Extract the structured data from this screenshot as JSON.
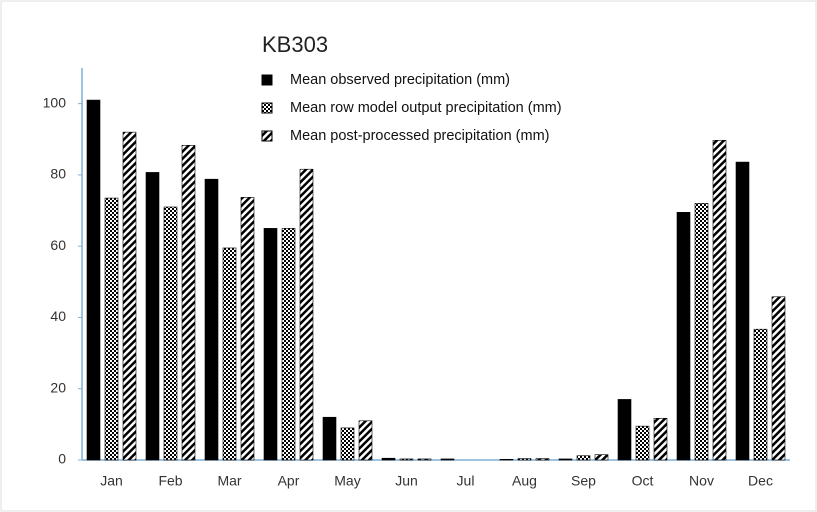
{
  "chart_data": {
    "type": "bar",
    "title": "KB303",
    "categories": [
      "Jan",
      "Feb",
      "Mar",
      "Apr",
      "May",
      "Jun",
      "Jul",
      "Aug",
      "Sep",
      "Oct",
      "Nov",
      "Dec"
    ],
    "series": [
      {
        "name": "Mean observed precipitation (mm)",
        "color": "#000000",
        "pattern": "solid",
        "values": [
          101,
          80.7,
          78.8,
          65,
          12,
          0.5,
          0.3,
          0.2,
          0.3,
          17,
          69.5,
          83.6
        ]
      },
      {
        "name": "Mean row model output precipitation (mm)",
        "color": "#000000",
        "pattern": "checker",
        "values": [
          73.5,
          71,
          59.5,
          65,
          9,
          0.3,
          0,
          0.4,
          1.2,
          9.5,
          72,
          36.7
        ]
      },
      {
        "name": "Mean post-processed precipitation (mm)",
        "color": "#000000",
        "pattern": "hatch",
        "values": [
          92,
          88.3,
          73.7,
          81.6,
          11,
          0.3,
          0,
          0.4,
          1.5,
          11.7,
          89.7,
          45.8
        ]
      }
    ],
    "ylim": [
      0,
      110
    ],
    "yticks": [
      0,
      20,
      40,
      60,
      80,
      100
    ],
    "grid": false,
    "legend": "top"
  }
}
